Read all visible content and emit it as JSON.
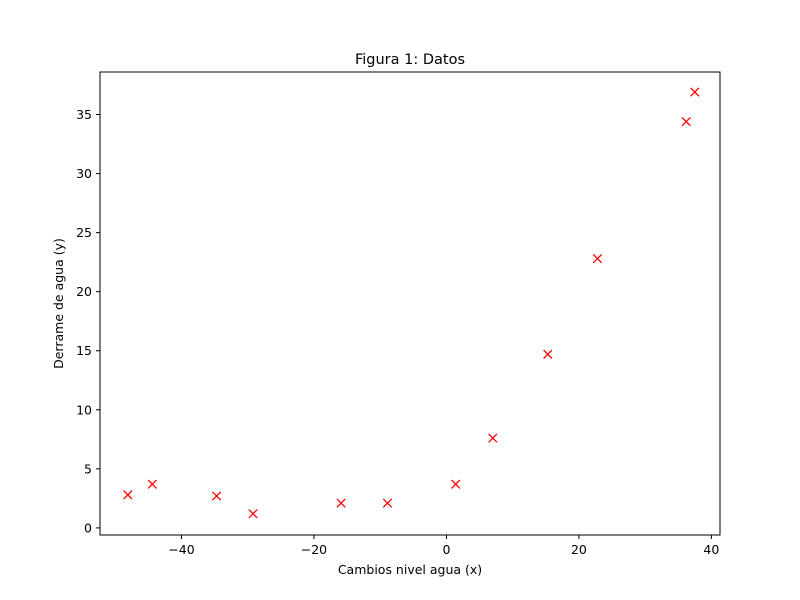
{
  "chart_data": {
    "type": "scatter",
    "title": "Figura 1: Datos",
    "xlabel": "Cambios nivel agua (x)",
    "ylabel": "Derrame de agua (y)",
    "xlim": [
      -52.3,
      41.3
    ],
    "ylim": [
      -0.6,
      38.6
    ],
    "xticks": [
      -40,
      -20,
      0,
      20,
      40
    ],
    "xtick_labels": [
      "−40",
      "−20",
      "0",
      "20",
      "40"
    ],
    "yticks": [
      0,
      5,
      10,
      15,
      20,
      25,
      30,
      35
    ],
    "ytick_labels": [
      "0",
      "5",
      "10",
      "15",
      "20",
      "25",
      "30",
      "35"
    ],
    "grid": false,
    "marker": "x",
    "color": "#ff0000",
    "points": [
      {
        "x": -48.1,
        "y": 2.8
      },
      {
        "x": -44.4,
        "y": 3.7
      },
      {
        "x": -34.7,
        "y": 2.7
      },
      {
        "x": -29.2,
        "y": 1.2
      },
      {
        "x": -15.9,
        "y": 2.1
      },
      {
        "x": -8.9,
        "y": 2.1
      },
      {
        "x": 1.4,
        "y": 3.7
      },
      {
        "x": 7.0,
        "y": 7.6
      },
      {
        "x": 15.3,
        "y": 14.7
      },
      {
        "x": 22.8,
        "y": 22.8
      },
      {
        "x": 36.2,
        "y": 34.4
      },
      {
        "x": 37.5,
        "y": 36.9
      }
    ]
  }
}
